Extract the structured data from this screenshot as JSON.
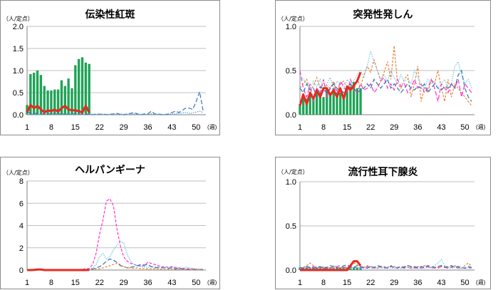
{
  "chart_data": [
    {
      "type": "bar",
      "title": "伝染性紅斑",
      "unit_label": "（人/定点）",
      "x_unit_label": "(週)",
      "ylim": [
        0,
        2.0
      ],
      "yticks": [
        "0.0",
        "0.5",
        "1.0",
        "1.5",
        "2.0"
      ],
      "xticks": [
        "1",
        "8",
        "15",
        "22",
        "29",
        "36",
        "43",
        "50"
      ],
      "grid": true,
      "weeks": 52,
      "bars": [
        0.22,
        0.92,
        0.95,
        1.0,
        0.9,
        0.65,
        0.55,
        0.55,
        0.57,
        0.57,
        0.78,
        0.65,
        0.82,
        0.6,
        1.12,
        1.26,
        1.3,
        1.18,
        1.15
      ],
      "current": [
        0.05,
        0.22,
        0.15,
        0.2,
        0.12,
        0.05,
        0.1,
        0.08,
        0.12,
        0.07,
        0.15,
        0.2,
        0.12,
        0.1,
        0.1,
        0.08,
        0.05,
        0.2,
        0.05
      ],
      "past": [
        {
          "color": "#2e75b6",
          "dash": "6 3",
          "values": [
            0.05,
            0.04,
            0.03,
            0.03,
            0.02,
            0.02,
            0.02,
            0.02,
            0.02,
            0.02,
            0.02,
            0.01,
            0.01,
            0.02,
            0.02,
            0.01,
            0.01,
            0.01,
            0.01,
            0.0,
            0.02,
            0.01,
            0.02,
            0.0,
            0.01,
            0.02,
            0.03,
            0.01,
            0.0,
            0.02,
            0.03,
            0.05,
            0.02,
            0.0,
            0.02,
            0.02,
            0.08,
            0.02,
            0.02,
            0.0,
            0.0,
            0.02,
            0.05,
            0.08,
            0.05,
            0.1,
            0.15,
            0.15,
            0.12,
            0.3,
            0.52,
            0.1
          ]
        },
        {
          "color": "#5b9bd5",
          "dash": "1.5 1.5",
          "values": [
            0.02,
            0.02,
            0.02,
            0.01,
            0.01,
            0.02,
            0.02,
            0.02,
            0.01,
            0.01,
            0.02,
            0.02,
            0.01,
            0.01,
            0.01,
            0.01,
            0.01,
            0.02,
            0.02,
            0.01,
            0.01,
            0.01,
            0.01,
            0.01,
            0.01,
            0.01,
            0.02,
            0.02,
            0.01,
            0.01,
            0.01,
            0.02,
            0.01,
            0.01,
            0.01,
            0.01,
            0.02,
            0.01,
            0.01,
            0.01,
            0.01,
            0.02,
            0.02,
            0.02,
            0.03,
            0.04,
            0.05,
            0.03,
            0.04,
            0.06,
            0.08,
            0.05
          ]
        }
      ]
    },
    {
      "type": "bar",
      "title": "突発性発しん",
      "unit_label": "（人/定点）",
      "x_unit_label": "(週)",
      "ylim": [
        0,
        1.0
      ],
      "yticks": [
        "0.0",
        "0.5",
        "1.0"
      ],
      "xticks": [
        "1",
        "8",
        "15",
        "22",
        "29",
        "36",
        "43",
        "50"
      ],
      "grid": true,
      "weeks": 52,
      "bars": [
        0.12,
        0.22,
        0.18,
        0.26,
        0.2,
        0.27,
        0.25,
        0.2,
        0.3,
        0.25,
        0.3,
        0.25,
        0.25,
        0.2,
        0.3,
        0.32,
        0.37,
        0.3,
        0.3
      ],
      "current": [
        0.1,
        0.23,
        0.12,
        0.25,
        0.18,
        0.28,
        0.2,
        0.3,
        0.3,
        0.22,
        0.28,
        0.2,
        0.3,
        0.18,
        0.32,
        0.28,
        0.33,
        0.38,
        0.48
      ],
      "past": [
        {
          "color": "#ed7d31",
          "dash": "3 2",
          "values": [
            0.3,
            0.35,
            0.4,
            0.28,
            0.32,
            0.42,
            0.3,
            0.36,
            0.33,
            0.3,
            0.38,
            0.26,
            0.35,
            0.38,
            0.3,
            0.34,
            0.27,
            0.4,
            0.32,
            0.45,
            0.55,
            0.48,
            0.62,
            0.5,
            0.38,
            0.48,
            0.6,
            0.4,
            0.78,
            0.35,
            0.3,
            0.4,
            0.45,
            0.2,
            0.35,
            0.55,
            0.15,
            0.3,
            0.25,
            0.4,
            0.35,
            0.5,
            0.3,
            0.15,
            0.4,
            0.2,
            0.35,
            0.3,
            0.25,
            0.2,
            0.15,
            0.1
          ]
        },
        {
          "color": "#ff33cc",
          "dash": "6 3",
          "values": [
            0.5,
            0.3,
            0.2,
            0.35,
            0.15,
            0.3,
            0.25,
            0.4,
            0.2,
            0.3,
            0.35,
            0.25,
            0.38,
            0.32,
            0.25,
            0.4,
            0.3,
            0.25,
            0.35,
            0.28,
            0.3,
            0.35,
            0.25,
            0.3,
            0.38,
            0.42,
            0.3,
            0.35,
            0.28,
            0.4,
            0.32,
            0.35,
            0.25,
            0.3,
            0.4,
            0.3,
            0.35,
            0.25,
            0.3,
            0.4,
            0.3,
            0.15,
            0.35,
            0.3,
            0.25,
            0.35,
            0.3,
            0.4,
            0.2,
            0.35,
            0.3,
            0.25
          ]
        },
        {
          "color": "#70c8e8",
          "dash": "1.5 1.5",
          "values": [
            0.45,
            0.4,
            0.35,
            0.3,
            0.38,
            0.32,
            0.4,
            0.28,
            0.35,
            0.42,
            0.3,
            0.38,
            0.35,
            0.3,
            0.4,
            0.35,
            0.38,
            0.45,
            0.5,
            0.42,
            0.55,
            0.72,
            0.6,
            0.5,
            0.4,
            0.45,
            0.38,
            0.5,
            0.42,
            0.35,
            0.45,
            0.38,
            0.4,
            0.35,
            0.5,
            0.42,
            0.35,
            0.3,
            0.4,
            0.35,
            0.38,
            0.3,
            0.35,
            0.4,
            0.3,
            0.35,
            0.55,
            0.6,
            0.45,
            0.35,
            0.4,
            0.3
          ]
        },
        {
          "color": "#2e75b6",
          "dash": "6 3",
          "values": [
            0.3,
            0.25,
            0.35,
            0.28,
            0.3,
            0.2,
            0.32,
            0.28,
            0.25,
            0.3,
            0.35,
            0.3,
            0.28,
            0.25,
            0.3,
            0.35,
            0.3,
            0.25,
            0.28,
            0.3,
            0.35,
            0.3,
            0.4,
            0.35,
            0.3,
            0.35,
            0.4,
            0.3,
            0.35,
            0.3,
            0.25,
            0.3,
            0.35,
            0.3,
            0.28,
            0.32,
            0.3,
            0.35,
            0.25,
            0.3,
            0.35,
            0.3,
            0.28,
            0.32,
            0.3,
            0.35,
            0.3,
            0.45,
            0.5,
            0.3,
            0.2,
            0.15
          ]
        }
      ]
    },
    {
      "type": "line",
      "title": "ヘルパンギーナ",
      "unit_label": "（人/定点）",
      "x_unit_label": "(週)",
      "ylim": [
        0,
        8
      ],
      "yticks": [
        "0",
        "2",
        "4",
        "6",
        "8"
      ],
      "xticks": [
        "1",
        "8",
        "15",
        "22",
        "29",
        "36",
        "43",
        "50"
      ],
      "grid": true,
      "weeks": 52,
      "bars": [],
      "current": [
        0.0,
        0.0,
        0.02,
        0.05,
        0.05,
        0.0,
        0.0,
        0.0,
        0.0,
        0.0,
        0.0,
        0.0,
        0.0,
        0.0,
        0.0,
        0.0,
        0.0,
        0.0,
        0.02
      ],
      "past": [
        {
          "color": "#ff33cc",
          "dash": "4 2",
          "values": [
            0.05,
            0.05,
            0.05,
            0.05,
            0.05,
            0.05,
            0.05,
            0.05,
            0.05,
            0.05,
            0.05,
            0.05,
            0.05,
            0.05,
            0.05,
            0.05,
            0.08,
            0.1,
            0.15,
            0.5,
            1.5,
            3.2,
            4.5,
            6.2,
            6.4,
            5.8,
            3.8,
            2.2,
            1.2,
            0.8,
            0.6,
            0.5,
            0.4,
            0.35,
            0.4,
            0.7,
            0.6,
            0.5,
            0.4,
            0.3,
            0.3,
            0.25,
            0.3,
            0.2,
            0.2,
            0.15,
            0.1,
            0.1,
            0.1,
            0.05,
            0.05,
            0.05
          ]
        },
        {
          "color": "#5bc0de",
          "dash": "1.5 1.5",
          "values": [
            0.05,
            0.05,
            0.05,
            0.05,
            0.05,
            0.05,
            0.05,
            0.05,
            0.05,
            0.05,
            0.05,
            0.05,
            0.05,
            0.05,
            0.05,
            0.05,
            0.05,
            0.05,
            0.1,
            0.2,
            0.5,
            1.2,
            1.5,
            1.0,
            1.2,
            1.8,
            2.2,
            2.6,
            2.4,
            1.4,
            0.8,
            0.5,
            0.4,
            0.3,
            0.3,
            0.25,
            0.3,
            0.3,
            0.2,
            0.2,
            0.2,
            0.25,
            0.2,
            0.3,
            0.1,
            0.15,
            0.25,
            0.2,
            0.15,
            0.1,
            0.1,
            0.05
          ]
        },
        {
          "color": "#2e75b6",
          "dash": "6 3",
          "values": [
            0.0,
            0.0,
            0.0,
            0.0,
            0.0,
            0.0,
            0.0,
            0.0,
            0.0,
            0.05,
            0.05,
            0.05,
            0.05,
            0.05,
            0.05,
            0.05,
            0.05,
            0.05,
            0.05,
            0.1,
            0.2,
            0.3,
            0.5,
            0.8,
            1.0,
            0.9,
            0.7,
            0.4,
            0.3,
            0.2,
            0.25,
            0.3,
            0.4,
            0.5,
            0.45,
            0.5,
            0.3,
            0.2,
            0.25,
            0.2,
            0.2,
            0.15,
            0.2,
            0.1,
            0.15,
            0.1,
            0.1,
            0.05,
            0.05,
            0.05,
            0.05,
            0.05
          ]
        },
        {
          "color": "#ed7d31",
          "dash": "3 2",
          "values": [
            0.05,
            0.05,
            0.05,
            0.05,
            0.05,
            0.05,
            0.05,
            0.05,
            0.05,
            0.05,
            0.05,
            0.05,
            0.05,
            0.05,
            0.05,
            0.05,
            0.05,
            0.05,
            0.05,
            0.05,
            0.1,
            0.1,
            0.2,
            0.3,
            0.4,
            0.5,
            0.6,
            0.5,
            0.3,
            0.2,
            0.2,
            0.15,
            0.2,
            0.1,
            0.15,
            0.1,
            0.1,
            0.1,
            0.1,
            0.05,
            0.05,
            0.05,
            0.05,
            0.05,
            0.05,
            0.05,
            0.05,
            0.05,
            0.05,
            0.05,
            0.05,
            0.05
          ]
        }
      ]
    },
    {
      "type": "bar",
      "title": "流行性耳下腺炎",
      "unit_label": "（人/定点）",
      "x_unit_label": "(週)",
      "ylim": [
        0,
        1.0
      ],
      "yticks": [
        "0.0",
        "0.5",
        "1.0"
      ],
      "xticks": [
        "1",
        "8",
        "15",
        "22",
        "29",
        "36",
        "43",
        "50"
      ],
      "grid": true,
      "weeks": 52,
      "bars": [
        0.03,
        0.03,
        0.03,
        0.03,
        0.03,
        0.03,
        0.03,
        0.03,
        0.03,
        0.03,
        0.03,
        0.03,
        0.03,
        0.03,
        0.03,
        0.03,
        0.03,
        0.03,
        0.03
      ],
      "current": [
        0.0,
        0.0,
        0.0,
        0.0,
        0.0,
        0.0,
        0.0,
        0.0,
        0.0,
        0.0,
        0.0,
        0.0,
        0.0,
        0.0,
        0.0,
        0.05,
        0.1,
        0.1,
        0.05
      ],
      "past": [
        {
          "color": "#ed7d31",
          "dash": "3 2",
          "values": [
            0.02,
            0.03,
            0.05,
            0.08,
            0.05,
            0.03,
            0.02,
            0.04,
            0.03,
            0.02,
            0.05,
            0.03,
            0.02,
            0.04,
            0.03,
            0.05,
            0.08,
            0.06,
            0.04,
            0.03,
            0.05,
            0.04,
            0.03,
            0.02,
            0.03,
            0.04,
            0.03,
            0.05,
            0.04,
            0.03,
            0.02,
            0.04,
            0.05,
            0.03,
            0.02,
            0.04,
            0.03,
            0.05,
            0.04,
            0.03,
            0.02,
            0.03,
            0.05,
            0.04,
            0.03,
            0.04,
            0.05,
            0.03,
            0.02,
            0.05,
            0.08,
            0.04
          ]
        },
        {
          "color": "#ff33cc",
          "dash": "6 3",
          "values": [
            0.01,
            0.02,
            0.03,
            0.02,
            0.04,
            0.02,
            0.03,
            0.02,
            0.01,
            0.03,
            0.02,
            0.04,
            0.05,
            0.03,
            0.02,
            0.03,
            0.04,
            0.02,
            0.03,
            0.02,
            0.04,
            0.03,
            0.02,
            0.03,
            0.04,
            0.02,
            0.03,
            0.05,
            0.02,
            0.03,
            0.04,
            0.02,
            0.03,
            0.02,
            0.04,
            0.03,
            0.02,
            0.03,
            0.04,
            0.02,
            0.03,
            0.02,
            0.04,
            0.03,
            0.02,
            0.03,
            0.04,
            0.02,
            0.03,
            0.02,
            0.03,
            0.02
          ]
        },
        {
          "color": "#70c8e8",
          "dash": "1.5 1.5",
          "values": [
            0.02,
            0.02,
            0.03,
            0.02,
            0.02,
            0.03,
            0.02,
            0.02,
            0.03,
            0.02,
            0.02,
            0.03,
            0.02,
            0.02,
            0.03,
            0.02,
            0.02,
            0.03,
            0.02,
            0.02,
            0.03,
            0.02,
            0.02,
            0.03,
            0.02,
            0.02,
            0.03,
            0.02,
            0.02,
            0.03,
            0.02,
            0.02,
            0.03,
            0.02,
            0.02,
            0.03,
            0.02,
            0.02,
            0.03,
            0.02,
            0.05,
            0.08,
            0.12,
            0.05,
            0.03,
            0.02,
            0.03,
            0.02,
            0.02,
            0.03,
            0.02,
            0.02
          ]
        },
        {
          "color": "#2e75b6",
          "dash": "6 3",
          "values": [
            0.03,
            0.02,
            0.04,
            0.03,
            0.02,
            0.03,
            0.04,
            0.02,
            0.03,
            0.05,
            0.04,
            0.03,
            0.02,
            0.05,
            0.06,
            0.04,
            0.03,
            0.05,
            0.04,
            0.03,
            0.02,
            0.04,
            0.03,
            0.05,
            0.04,
            0.03,
            0.02,
            0.04,
            0.03,
            0.02,
            0.04,
            0.03,
            0.05,
            0.04,
            0.03,
            0.02,
            0.04,
            0.03,
            0.05,
            0.04,
            0.03,
            0.04,
            0.05,
            0.03,
            0.04,
            0.05,
            0.03,
            0.04,
            0.03,
            0.02,
            0.04,
            0.03
          ]
        }
      ]
    }
  ]
}
